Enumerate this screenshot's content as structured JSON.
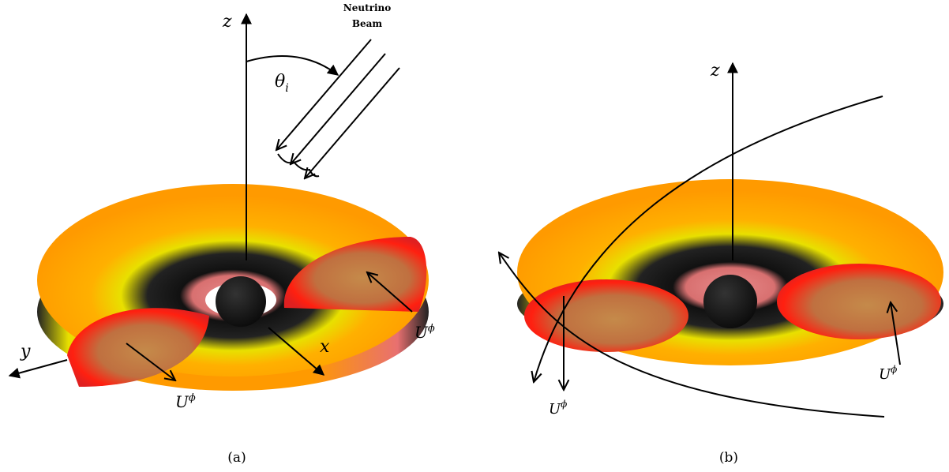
{
  "panels": [
    {
      "caption": "(a)",
      "axes": {
        "z": "z",
        "x": "x",
        "y": "y"
      },
      "beam": [
        "Neutrino",
        "Beam"
      ],
      "angle": {
        "symbol": "θ",
        "subscript": "i"
      },
      "velocity_labels": [
        {
          "base": "U",
          "superscript": "ϕ"
        },
        {
          "base": "U",
          "superscript": "ϕ"
        }
      ]
    },
    {
      "caption": "(b)",
      "axes": {
        "z": "z"
      },
      "velocity_labels": [
        {
          "base": "U",
          "superscript": "ϕ"
        },
        {
          "base": "U",
          "superscript": "ϕ"
        }
      ]
    }
  ]
}
